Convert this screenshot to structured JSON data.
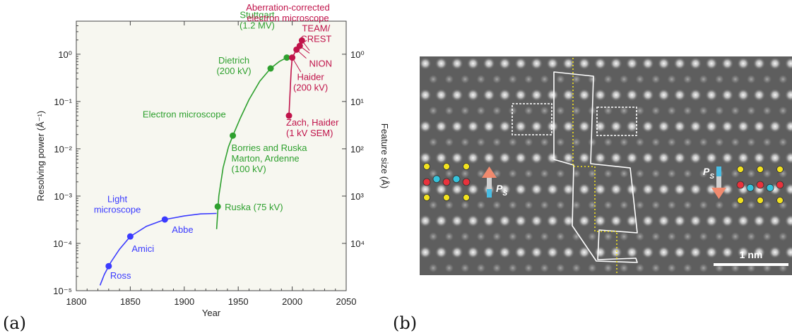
{
  "figure": {
    "panel_a_label": "(a)",
    "panel_b_label": "(b)"
  },
  "chart_data": {
    "type": "scatter",
    "xlabel": "Year",
    "ylabel": "Resolving power (Å⁻¹)",
    "y2label": "Feature size (Å)",
    "xlim": [
      1800,
      2050
    ],
    "ylim": [
      1e-05,
      5
    ],
    "yscale": "log",
    "x_ticks": [
      "1800",
      "1850",
      "1900",
      "1950",
      "2000",
      "2050"
    ],
    "y_ticks": [
      "10⁻⁵",
      "10⁻⁴",
      "10⁻³",
      "10⁻²",
      "10⁻¹",
      "10⁰"
    ],
    "y2_ticks": [
      "10⁴",
      "10³",
      "10²",
      "10¹",
      "10⁰"
    ],
    "colors": {
      "light": "#3b3bff",
      "electron": "#2ea02e",
      "aberration": "#c0134a"
    },
    "series": [
      {
        "color_key": "light",
        "points": [
          {
            "x": 1830,
            "y": 3.3e-05,
            "label": "Ross"
          },
          {
            "x": 1850,
            "y": 0.00014,
            "label": "Amici"
          },
          {
            "x": 1882,
            "y": 0.00032,
            "label": "Abbe"
          }
        ],
        "curve": [
          [
            1822,
            1.3e-05
          ],
          [
            1826,
            2.2e-05
          ],
          [
            1832,
            4e-05
          ],
          [
            1840,
            7.5e-05
          ],
          [
            1850,
            0.00014
          ],
          [
            1865,
            0.00023
          ],
          [
            1882,
            0.00032
          ],
          [
            1900,
            0.00038
          ],
          [
            1915,
            0.00042
          ],
          [
            1930,
            0.00043
          ]
        ]
      },
      {
        "color_key": "electron",
        "points": [
          {
            "x": 1931,
            "y": 0.0006,
            "label": "Ruska (75 kV)"
          },
          {
            "x": 1945,
            "y": 0.019,
            "label": "Borries and Ruska\nMarton, Ardenne\n(100 kV)"
          },
          {
            "x": 1980,
            "y": 0.5,
            "label": "Dietrich\n(200 kV)"
          },
          {
            "x": 1995,
            "y": 0.85,
            "label": "Stuttgart\n(1.2 MV)"
          }
        ],
        "curve": [
          [
            1930,
            0.0002
          ],
          [
            1932,
            0.001
          ],
          [
            1936,
            0.004
          ],
          [
            1941,
            0.011
          ],
          [
            1945,
            0.019
          ],
          [
            1952,
            0.045
          ],
          [
            1960,
            0.11
          ],
          [
            1970,
            0.27
          ],
          [
            1980,
            0.5
          ],
          [
            1988,
            0.7
          ],
          [
            1995,
            0.85
          ]
        ]
      },
      {
        "color_key": "aberration",
        "points": [
          {
            "x": 1997,
            "y": 0.05,
            "label": "Zach, Haider\n(1 kV SEM)"
          },
          {
            "x": 2000,
            "y": 0.85,
            "label": "Haider\n(200 kV)"
          },
          {
            "x": 2004,
            "y": 1.25,
            "label": "NION"
          },
          {
            "x": 2007,
            "y": 1.5,
            "label": ""
          },
          {
            "x": 2009,
            "y": 1.95,
            "label": "TEAM/\nCREST"
          }
        ],
        "curve": [
          [
            1997,
            0.05
          ],
          [
            1998,
            0.15
          ],
          [
            1999,
            0.45
          ],
          [
            2000,
            0.85
          ],
          [
            2004,
            1.25
          ],
          [
            2007,
            1.5
          ],
          [
            2009,
            1.95
          ]
        ]
      }
    ],
    "annotations": [
      {
        "text": "Light\nmicroscope",
        "color_key": "light"
      },
      {
        "text": "Electron microscope",
        "color_key": "electron"
      },
      {
        "text": "Aberration-corrected\nelectron microscope",
        "color_key": "aberration"
      }
    ]
  },
  "micrograph": {
    "scale_bar_label": "1 nm",
    "ps_label": "P",
    "ps_subscript": "S",
    "atom_colors": {
      "yellow": "#f2e21f",
      "red": "#e8323c",
      "cyan": "#36c3dc"
    },
    "arrow_colors": {
      "arrow": "#f08a6e",
      "bar": "#49bde3"
    }
  }
}
